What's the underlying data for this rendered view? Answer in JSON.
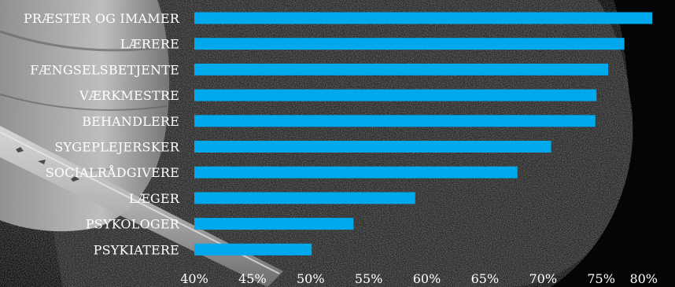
{
  "colors": {
    "bar": "#00a9ec",
    "text": "#ffffff",
    "background": "#0b0b0b"
  },
  "background_image": "black-and-white-photo-with-rough-textured-ground-and-pale-pipe",
  "chart_data": {
    "type": "bar",
    "orientation": "horizontal",
    "title": "",
    "xlabel": "",
    "ylabel": "",
    "grid": false,
    "legend": "none",
    "xlim": [
      40,
      80
    ],
    "x_ticks": [
      "40%",
      "45%",
      "50%",
      "55%",
      "60%",
      "65%",
      "70%",
      "75%",
      "80%"
    ],
    "x_tick_values": [
      40,
      45,
      50,
      55,
      60,
      65,
      70,
      75,
      80
    ],
    "categories": [
      "PRÆSTER OG IMAMER",
      "LÆRERE",
      "FÆNGSELSBETJENTE",
      "VÆRKMESTRE",
      "BEHANDLERE",
      "SYGEPLEJERSKER",
      "SOCIALRÅDGIVERE",
      "LÆGER",
      "PSYKOLOGER",
      "PSYKIATERE"
    ],
    "values": [
      79.4,
      77.0,
      75.6,
      74.6,
      74.5,
      70.7,
      67.8,
      59.0,
      53.7,
      50.1
    ]
  }
}
